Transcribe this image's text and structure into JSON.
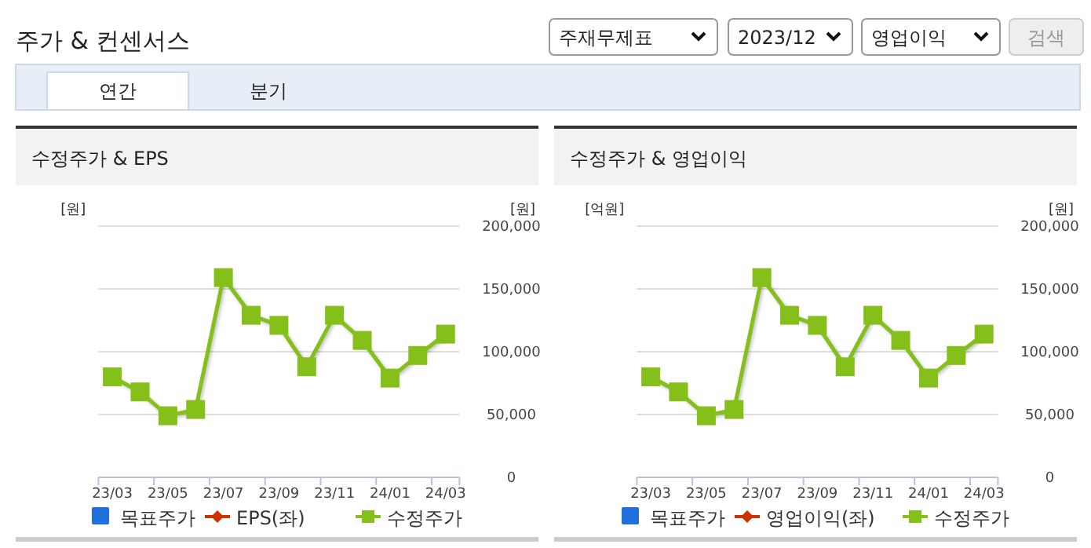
{
  "chart_data": [
    {
      "type": "other",
      "title": "주가 & 컨센서스",
      "annotations": [
        "주재무제표",
        "2023/12",
        "영업이익",
        "검색",
        "연간",
        "분기"
      ]
    },
    {
      "type": "line",
      "title": "수정주가 & EPS",
      "ylabel": "[원]",
      "y2label": "[원]",
      "categories": [
        "23/03",
        null,
        "23/05",
        null,
        "23/07",
        null,
        "23/09",
        null,
        "23/11",
        null,
        "24/01",
        null,
        "24/03"
      ],
      "y2lim": [
        0,
        200000
      ],
      "y2ticks": [
        {
          "value": 0,
          "label": "0"
        },
        {
          "value": 50000,
          "label": "50,000"
        },
        {
          "value": 100000,
          "label": "100,000"
        },
        {
          "value": 150000,
          "label": "150,000"
        },
        {
          "value": 200000,
          "label": "200,000"
        }
      ],
      "grid": "y",
      "legend": "bottom",
      "series": [
        {
          "name": "목표주가",
          "type": "bar",
          "color": "#1f6fdc",
          "values": [
            null,
            null,
            null,
            null,
            null,
            null,
            null,
            null,
            null,
            null,
            null,
            null,
            null
          ]
        },
        {
          "name": "EPS(좌)",
          "type": "line",
          "marker": "diamond",
          "color": "#cc3300",
          "values": [
            null,
            null,
            null,
            null,
            null,
            null,
            null,
            null,
            null,
            null,
            null,
            null,
            null
          ]
        },
        {
          "name": "수정주가",
          "type": "line",
          "marker": "square",
          "axis": "y2",
          "color": "#84bf1a",
          "values": [
            80000,
            68000,
            49000,
            54000,
            159000,
            129000,
            121000,
            88000,
            129000,
            109000,
            79000,
            97000,
            114000
          ]
        }
      ]
    },
    {
      "type": "line",
      "title": "수정주가 & 영업이익",
      "ylabel": "[억원]",
      "y2label": "[원]",
      "categories": [
        "23/03",
        null,
        "23/05",
        null,
        "23/07",
        null,
        "23/09",
        null,
        "23/11",
        null,
        "24/01",
        null,
        "24/03"
      ],
      "y2lim": [
        0,
        200000
      ],
      "y2ticks": [
        {
          "value": 0,
          "label": "0"
        },
        {
          "value": 50000,
          "label": "50,000"
        },
        {
          "value": 100000,
          "label": "100,000"
        },
        {
          "value": 150000,
          "label": "150,000"
        },
        {
          "value": 200000,
          "label": "200,000"
        }
      ],
      "grid": "y",
      "legend": "bottom",
      "series": [
        {
          "name": "목표주가",
          "type": "bar",
          "color": "#1f6fdc",
          "values": [
            null,
            null,
            null,
            null,
            null,
            null,
            null,
            null,
            null,
            null,
            null,
            null,
            null
          ]
        },
        {
          "name": "영업이익(좌)",
          "type": "line",
          "marker": "diamond",
          "color": "#cc3300",
          "values": [
            null,
            null,
            null,
            null,
            null,
            null,
            null,
            null,
            null,
            null,
            null,
            null,
            null
          ]
        },
        {
          "name": "수정주가",
          "type": "line",
          "marker": "square",
          "axis": "y2",
          "color": "#84bf1a",
          "values": [
            80000,
            68000,
            49000,
            54000,
            159000,
            129000,
            121000,
            88000,
            129000,
            109000,
            79000,
            97000,
            114000
          ]
        }
      ]
    }
  ]
}
